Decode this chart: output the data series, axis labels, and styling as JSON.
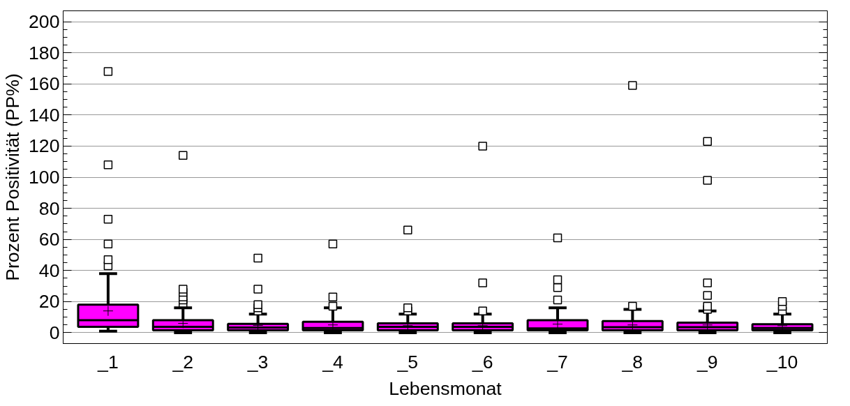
{
  "chart_data": {
    "type": "box",
    "xlabel": "Lebensmonat",
    "ylabel": "Prozent Positivität (PP%)",
    "categories": [
      "_1",
      "_2",
      "_3",
      "_4",
      "_5",
      "_6",
      "_7",
      "_8",
      "_9",
      "_10"
    ],
    "ylim": [
      -7,
      207
    ],
    "yticks": [
      0,
      20,
      40,
      60,
      80,
      100,
      120,
      140,
      160,
      180,
      200
    ],
    "grid": "y",
    "marker": "square",
    "series": [
      {
        "color": "#ff00ff",
        "boxes": [
          {
            "low": 1,
            "q1": 3.8,
            "median": 8,
            "q3": 18,
            "high": 38,
            "mean": 14,
            "outliers": [
              43,
              47,
              57,
              73,
              108,
              168
            ]
          },
          {
            "low": 0,
            "q1": 1.5,
            "median": 3.8,
            "q3": 8,
            "high": 16,
            "mean": 6,
            "outliers": [
              19,
              21,
              23,
              26,
              28,
              114
            ]
          },
          {
            "low": 0,
            "q1": 1.5,
            "median": 3.3,
            "q3": 5.7,
            "high": 12,
            "mean": 4.7,
            "outliers": [
              14,
              16,
              18,
              28,
              48
            ]
          },
          {
            "low": 0,
            "q1": 1.5,
            "median": 3,
            "q3": 7,
            "high": 16,
            "mean": 5,
            "outliers": [
              17,
              23,
              57
            ]
          },
          {
            "low": 0,
            "q1": 1.5,
            "median": 3.8,
            "q3": 6,
            "high": 12,
            "mean": 4.5,
            "outliers": [
              14,
              16,
              66
            ]
          },
          {
            "low": 0,
            "q1": 1.5,
            "median": 3.8,
            "q3": 6,
            "high": 12,
            "mean": 4.5,
            "outliers": [
              14,
              32,
              120
            ]
          },
          {
            "low": 0,
            "q1": 1.5,
            "median": 2.8,
            "q3": 8,
            "high": 16,
            "mean": 5.5,
            "outliers": [
              21,
              29,
              34,
              61
            ]
          },
          {
            "low": 0,
            "q1": 1.5,
            "median": 3.5,
            "q3": 7.5,
            "high": 15,
            "mean": 5,
            "outliers": [
              17,
              159
            ]
          },
          {
            "low": 0,
            "q1": 1.5,
            "median": 3.5,
            "q3": 6.5,
            "high": 14,
            "mean": 5,
            "outliers": [
              15,
              17,
              24,
              32,
              98,
              123
            ]
          },
          {
            "low": 0,
            "q1": 1.5,
            "median": 3,
            "q3": 5.5,
            "high": 12,
            "mean": 4.5,
            "outliers": [
              14,
              17,
              20
            ]
          }
        ]
      }
    ]
  }
}
